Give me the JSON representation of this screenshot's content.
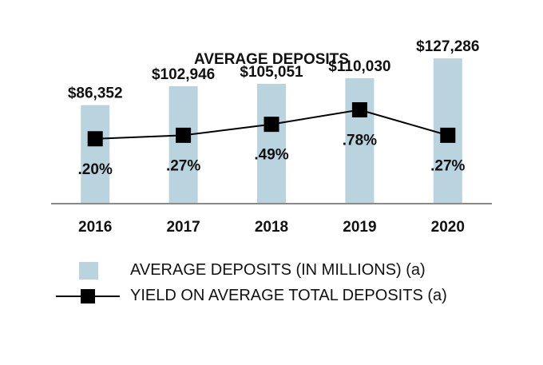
{
  "chart_data": {
    "type": "bar",
    "title": "AVERAGE DEPOSITS",
    "categories": [
      "2016",
      "2017",
      "2018",
      "2019",
      "2020"
    ],
    "series": [
      {
        "name": "AVERAGE DEPOSITS (IN MILLIONS) (a)",
        "kind": "bar",
        "values": [
          86352,
          102946,
          105051,
          110030,
          127286
        ],
        "labels": [
          "$86,352",
          "$102,946",
          "$105,051",
          "$110,030",
          "$127,286"
        ],
        "color": "#b9d3df"
      },
      {
        "name": "YIELD ON AVERAGE TOTAL DEPOSITS (a)",
        "kind": "line",
        "values": [
          0.2,
          0.27,
          0.49,
          0.78,
          0.27
        ],
        "labels": [
          ".20%",
          ".27%",
          ".49%",
          ".78%",
          ".27%"
        ],
        "color": "#000000"
      }
    ],
    "ylim": [
      0,
      140000
    ],
    "y2lim": [
      -1.1,
      2.1
    ],
    "xlabel": "",
    "ylabel": "",
    "grid": false,
    "legend": "bottom"
  }
}
